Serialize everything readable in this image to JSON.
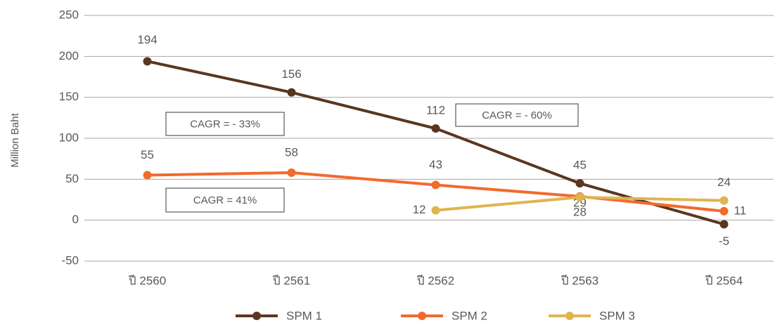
{
  "chart_data": {
    "type": "line",
    "y_label": "Million Baht",
    "categories": [
      "ปี 2560",
      "ปี 2561",
      "ปี 2562",
      "ปี 2563",
      "ปี 2564"
    ],
    "series": [
      {
        "name": "SPM 1",
        "color": "#5a3620",
        "values": [
          194,
          156,
          112,
          45,
          -5
        ]
      },
      {
        "name": "SPM 2",
        "color": "#f26a2e",
        "values": [
          55,
          58,
          43,
          29,
          11
        ]
      },
      {
        "name": "SPM 3",
        "color": "#e0b450",
        "values": [
          null,
          null,
          12,
          28,
          24
        ]
      }
    ],
    "annotations": [
      "CAGR = - 33%",
      "CAGR = - 60%",
      "CAGR = 41%"
    ],
    "ylim": [
      -50,
      250
    ],
    "yticks": [
      -50,
      0,
      50,
      100,
      150,
      200,
      250
    ],
    "grid": true,
    "legend": "bottom"
  }
}
